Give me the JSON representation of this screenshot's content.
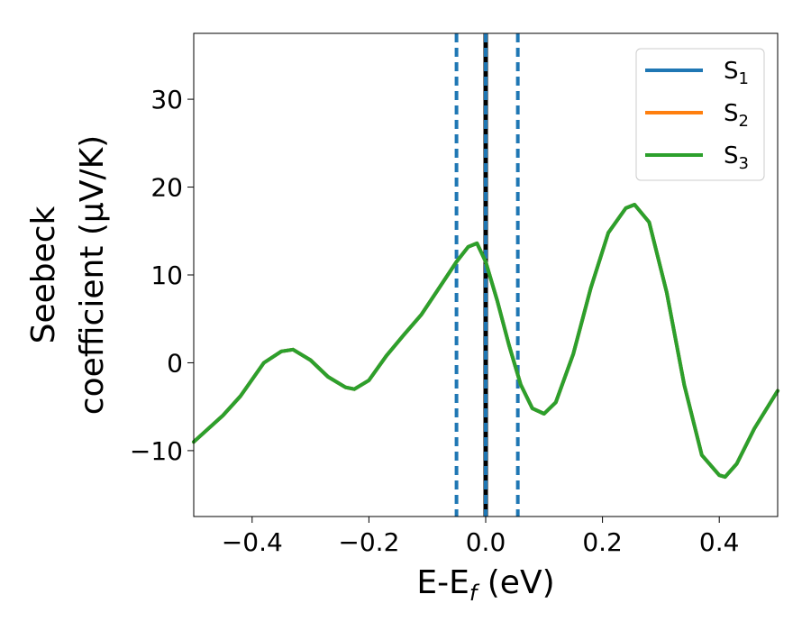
{
  "chart_data": {
    "type": "line",
    "xlabel": "E-E",
    "xlabel_sub": "f",
    "xlabel_unit": " (eV)",
    "ylabel_line1": "Seebeck",
    "ylabel_line2": "coefficient  (μV/K)",
    "xlim": [
      -0.5,
      0.5
    ],
    "ylim": [
      -17.5,
      37.5
    ],
    "xticks": [
      -0.4,
      -0.2,
      0.0,
      0.2,
      0.4
    ],
    "xtick_labels": [
      "−0.4",
      "−0.2",
      "0.0",
      "0.2",
      "0.4"
    ],
    "yticks": [
      -10,
      0,
      10,
      20,
      30
    ],
    "ytick_labels": [
      "−10",
      "0",
      "10",
      "20",
      "30"
    ],
    "grid": false,
    "legend_position": "top-right",
    "vlines": [
      {
        "x": -0.05,
        "style": "dashed",
        "color": "#1f77b4"
      },
      {
        "x": 0.055,
        "style": "dashed",
        "color": "#1f77b4"
      },
      {
        "x": 0.0,
        "style": "solid",
        "color": "#000000"
      },
      {
        "x": 0.0,
        "style": "dashed",
        "color": "#1f77b4"
      }
    ],
    "series": [
      {
        "name": "S",
        "sub": "1",
        "color": "#1f77b4",
        "x": [
          -0.5,
          -0.45,
          -0.42,
          -0.38,
          -0.35,
          -0.33,
          -0.3,
          -0.27,
          -0.24,
          -0.225,
          -0.2,
          -0.17,
          -0.14,
          -0.11,
          -0.08,
          -0.05,
          -0.03,
          -0.015,
          0.0,
          0.02,
          0.04,
          0.06,
          0.08,
          0.1,
          0.12,
          0.15,
          0.18,
          0.21,
          0.24,
          0.255,
          0.28,
          0.31,
          0.34,
          0.37,
          0.4,
          0.41,
          0.43,
          0.46,
          0.5
        ],
        "y": [
          -9,
          -6,
          -3.8,
          0,
          1.3,
          1.5,
          0.3,
          -1.6,
          -2.8,
          -3,
          -2,
          0.8,
          3.2,
          5.5,
          8.5,
          11.5,
          13.2,
          13.6,
          11.5,
          7,
          2,
          -2.5,
          -5.2,
          -5.8,
          -4.5,
          1,
          8.5,
          14.8,
          17.6,
          18,
          16,
          8,
          -2.5,
          -10.5,
          -12.8,
          -13,
          -11.5,
          -7.5,
          -3.2
        ]
      },
      {
        "name": "S",
        "sub": "2",
        "color": "#ff7f0e",
        "x": [
          -0.5,
          -0.45,
          -0.42,
          -0.38,
          -0.35,
          -0.33,
          -0.3,
          -0.27,
          -0.24,
          -0.225,
          -0.2,
          -0.17,
          -0.14,
          -0.11,
          -0.08,
          -0.05,
          -0.03,
          -0.015,
          0.0,
          0.02,
          0.04,
          0.06,
          0.08,
          0.1,
          0.12,
          0.15,
          0.18,
          0.21,
          0.24,
          0.255,
          0.28,
          0.31,
          0.34,
          0.37,
          0.4,
          0.41,
          0.43,
          0.46,
          0.5
        ],
        "y": [
          -9,
          -6,
          -3.8,
          0,
          1.3,
          1.5,
          0.3,
          -1.6,
          -2.8,
          -3,
          -2,
          0.8,
          3.2,
          5.5,
          8.5,
          11.5,
          13.2,
          13.6,
          11.5,
          7,
          2,
          -2.5,
          -5.2,
          -5.8,
          -4.5,
          1,
          8.5,
          14.8,
          17.6,
          18,
          16,
          8,
          -2.5,
          -10.5,
          -12.8,
          -13,
          -11.5,
          -7.5,
          -3.2
        ]
      },
      {
        "name": "S",
        "sub": "3",
        "color": "#2ca02c",
        "x": [
          -0.5,
          -0.45,
          -0.42,
          -0.38,
          -0.35,
          -0.33,
          -0.3,
          -0.27,
          -0.24,
          -0.225,
          -0.2,
          -0.17,
          -0.14,
          -0.11,
          -0.08,
          -0.05,
          -0.03,
          -0.015,
          0.0,
          0.02,
          0.04,
          0.06,
          0.08,
          0.1,
          0.12,
          0.15,
          0.18,
          0.21,
          0.24,
          0.255,
          0.28,
          0.31,
          0.34,
          0.37,
          0.4,
          0.41,
          0.43,
          0.46,
          0.5
        ],
        "y": [
          -9,
          -6,
          -3.8,
          0,
          1.3,
          1.5,
          0.3,
          -1.6,
          -2.8,
          -3,
          -2,
          0.8,
          3.2,
          5.5,
          8.5,
          11.5,
          13.2,
          13.6,
          11.5,
          7,
          2,
          -2.5,
          -5.2,
          -5.8,
          -4.5,
          1,
          8.5,
          14.8,
          17.6,
          18,
          16,
          8,
          -2.5,
          -10.5,
          -12.8,
          -13,
          -11.5,
          -7.5,
          -3.2
        ]
      }
    ]
  }
}
